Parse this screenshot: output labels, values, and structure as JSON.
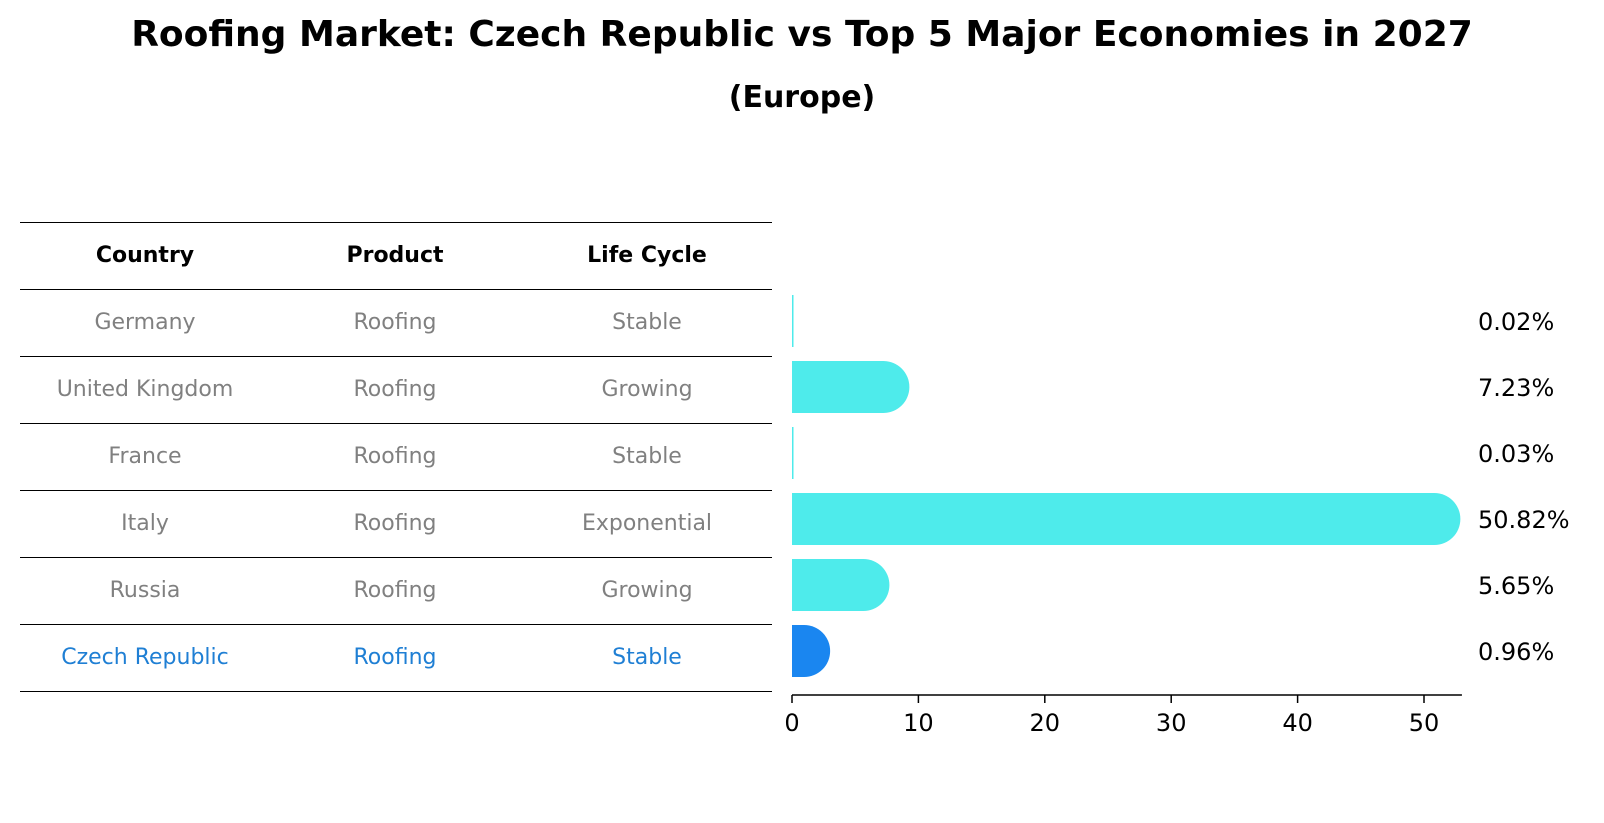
{
  "title": "Roofing Market: Czech Republic vs Top 5 Major Economies in 2027",
  "subtitle": "(Europe)",
  "table": {
    "headers": [
      "Country",
      "Product",
      "Life Cycle"
    ],
    "rows": [
      [
        "Germany",
        "Roofing",
        "Stable"
      ],
      [
        "United Kingdom",
        "Roofing",
        "Growing"
      ],
      [
        "France",
        "Roofing",
        "Stable"
      ],
      [
        "Italy",
        "Roofing",
        "Exponential"
      ],
      [
        "Russia",
        "Roofing",
        "Growing"
      ],
      [
        "Czech Republic",
        "Roofing",
        "Stable"
      ]
    ]
  },
  "chart_data": {
    "type": "bar",
    "orientation": "horizontal",
    "categories": [
      "Germany",
      "United Kingdom",
      "France",
      "Italy",
      "Russia",
      "Czech Republic"
    ],
    "values": [
      0.02,
      7.23,
      0.03,
      50.82,
      5.65,
      0.96
    ],
    "data_labels": [
      "0.02%",
      "7.23%",
      "0.03%",
      "50.82%",
      "5.65%",
      "0.96%"
    ],
    "xlim": [
      0,
      53
    ],
    "xticks": [
      0,
      10,
      20,
      30,
      40,
      50
    ],
    "colors": {
      "default": "#4eebeb",
      "highlight": "#1a86f0"
    },
    "highlight_category": "Czech Republic",
    "grid": false
  }
}
